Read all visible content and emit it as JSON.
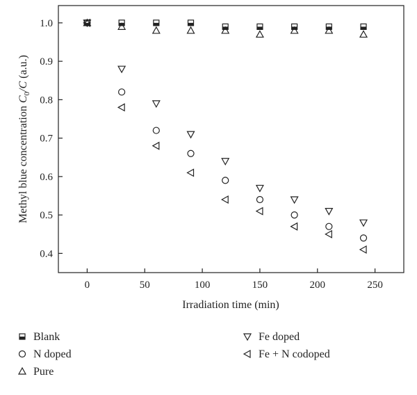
{
  "chart_data": {
    "type": "scatter",
    "title": "",
    "xlabel": "Irradiation time (min)",
    "ylabel_main": "Methyl blue concentration ",
    "ylabel_c0": "C",
    "ylabel_sub": "0",
    "ylabel_rest": "/C",
    "ylabel_unit": " (a.u.)",
    "xlim": [
      -25,
      275
    ],
    "ylim": [
      0.35,
      1.045
    ],
    "x_ticks": [
      0,
      50,
      100,
      150,
      200,
      250
    ],
    "x_tick_labels": [
      "0",
      "50",
      "100",
      "150",
      "200",
      "250"
    ],
    "y_ticks": [
      0.4,
      0.5,
      0.6,
      0.7,
      0.8,
      0.9,
      1.0
    ],
    "y_tick_labels": [
      "0.4",
      "0.5",
      "0.6",
      "0.7",
      "0.8",
      "0.9",
      "1.0"
    ],
    "grid": false,
    "legend_position": "below",
    "series": [
      {
        "name": "Blank",
        "marker": "square-half",
        "x": [
          0,
          30,
          60,
          90,
          120,
          150,
          180,
          210,
          240
        ],
        "y": [
          1.0,
          1.0,
          1.0,
          1.0,
          0.99,
          0.99,
          0.99,
          0.99,
          0.99
        ]
      },
      {
        "name": "N doped",
        "marker": "circle",
        "x": [
          0,
          30,
          60,
          90,
          120,
          150,
          180,
          210,
          240
        ],
        "y": [
          1.0,
          0.82,
          0.72,
          0.66,
          0.59,
          0.54,
          0.5,
          0.47,
          0.44
        ]
      },
      {
        "name": "Pure",
        "marker": "triangle-up",
        "x": [
          0,
          30,
          60,
          90,
          120,
          150,
          180,
          210,
          240
        ],
        "y": [
          1.0,
          0.99,
          0.98,
          0.98,
          0.98,
          0.97,
          0.98,
          0.98,
          0.97
        ]
      },
      {
        "name": "Fe doped",
        "marker": "triangle-down",
        "x": [
          0,
          30,
          60,
          90,
          120,
          150,
          180,
          210,
          240
        ],
        "y": [
          1.0,
          0.88,
          0.79,
          0.71,
          0.64,
          0.57,
          0.54,
          0.51,
          0.48
        ]
      },
      {
        "name": "Fe + N codoped",
        "marker": "triangle-left",
        "x": [
          0,
          30,
          60,
          90,
          120,
          150,
          180,
          210,
          240
        ],
        "y": [
          1.0,
          0.78,
          0.68,
          0.61,
          0.54,
          0.51,
          0.47,
          0.45,
          0.41
        ]
      }
    ]
  }
}
